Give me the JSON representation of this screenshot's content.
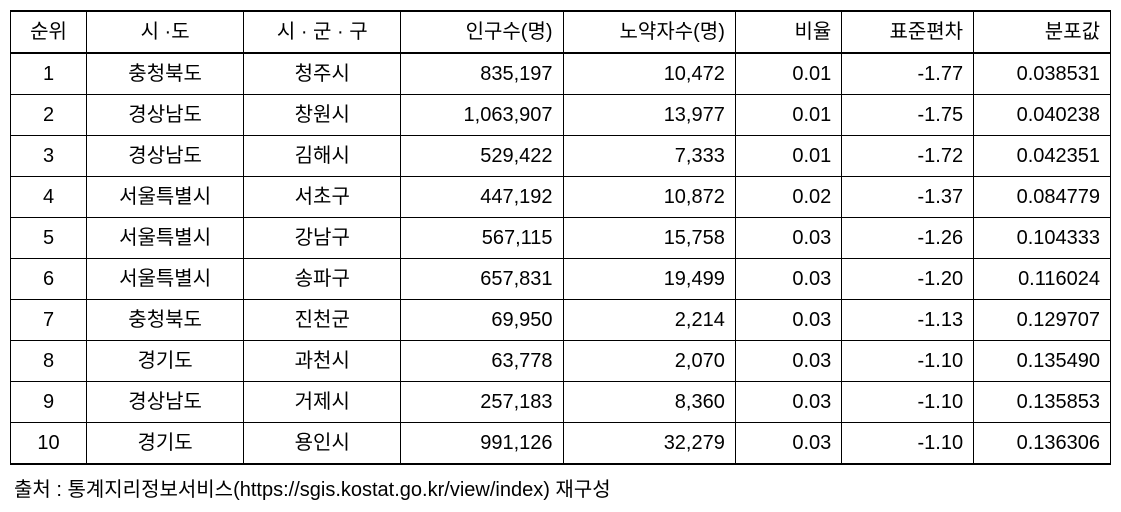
{
  "table": {
    "columns": [
      {
        "key": "rank",
        "label": "순위",
        "class": "col-rank"
      },
      {
        "key": "sido",
        "label": "시 ·도",
        "class": "col-sido"
      },
      {
        "key": "sigungu",
        "label": "시 · 군 · 구",
        "class": "col-sigungu"
      },
      {
        "key": "population",
        "label": "인구수(명)",
        "class": "col-pop"
      },
      {
        "key": "elderly",
        "label": "노약자수(명)",
        "class": "col-elderly"
      },
      {
        "key": "ratio",
        "label": "비율",
        "class": "col-ratio"
      },
      {
        "key": "stddev",
        "label": "표준편차",
        "class": "col-stddev"
      },
      {
        "key": "dist",
        "label": "분포값",
        "class": "col-dist"
      }
    ],
    "rows": [
      {
        "rank": "1",
        "sido": "충청북도",
        "sigungu": "청주시",
        "population": "835,197",
        "elderly": "10,472",
        "ratio": "0.01",
        "stddev": "-1.77",
        "dist": "0.038531"
      },
      {
        "rank": "2",
        "sido": "경상남도",
        "sigungu": "창원시",
        "population": "1,063,907",
        "elderly": "13,977",
        "ratio": "0.01",
        "stddev": "-1.75",
        "dist": "0.040238"
      },
      {
        "rank": "3",
        "sido": "경상남도",
        "sigungu": "김해시",
        "population": "529,422",
        "elderly": "7,333",
        "ratio": "0.01",
        "stddev": "-1.72",
        "dist": "0.042351"
      },
      {
        "rank": "4",
        "sido": "서울특별시",
        "sigungu": "서초구",
        "population": "447,192",
        "elderly": "10,872",
        "ratio": "0.02",
        "stddev": "-1.37",
        "dist": "0.084779"
      },
      {
        "rank": "5",
        "sido": "서울특별시",
        "sigungu": "강남구",
        "population": "567,115",
        "elderly": "15,758",
        "ratio": "0.03",
        "stddev": "-1.26",
        "dist": "0.104333"
      },
      {
        "rank": "6",
        "sido": "서울특별시",
        "sigungu": "송파구",
        "population": "657,831",
        "elderly": "19,499",
        "ratio": "0.03",
        "stddev": "-1.20",
        "dist": "0.116024"
      },
      {
        "rank": "7",
        "sido": "충청북도",
        "sigungu": "진천군",
        "population": "69,950",
        "elderly": "2,214",
        "ratio": "0.03",
        "stddev": "-1.13",
        "dist": "0.129707"
      },
      {
        "rank": "8",
        "sido": "경기도",
        "sigungu": "과천시",
        "population": "63,778",
        "elderly": "2,070",
        "ratio": "0.03",
        "stddev": "-1.10",
        "dist": "0.135490"
      },
      {
        "rank": "9",
        "sido": "경상남도",
        "sigungu": "거제시",
        "population": "257,183",
        "elderly": "8,360",
        "ratio": "0.03",
        "stddev": "-1.10",
        "dist": "0.135853"
      },
      {
        "rank": "10",
        "sido": "경기도",
        "sigungu": "용인시",
        "population": "991,126",
        "elderly": "32,279",
        "ratio": "0.03",
        "stddev": "-1.10",
        "dist": "0.136306"
      }
    ]
  },
  "source_note": "출처 : 통계지리정보서비스(https://sgis.kostat.go.kr/view/index) 재구성",
  "styles": {
    "background_color": "#ffffff",
    "border_color": "#000000",
    "font_family": "Malgun Gothic",
    "header_fontsize": 20,
    "body_fontsize": 20,
    "source_fontsize": 20,
    "border_thick": 2,
    "border_thin": 1
  }
}
